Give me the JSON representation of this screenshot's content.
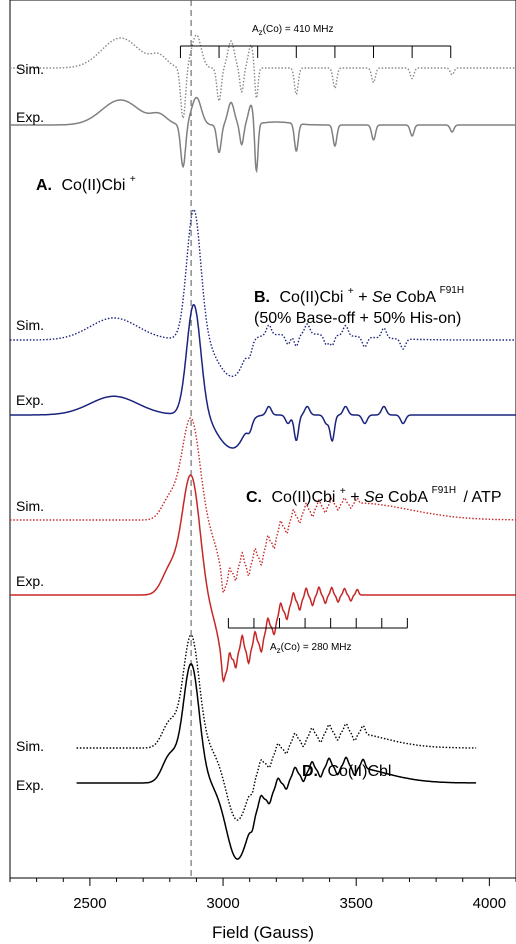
{
  "chart_data": {
    "type": "line",
    "xlabel": "Field (Gauss)",
    "xlim": [
      2200,
      4100
    ],
    "x_ticks": [
      "2500",
      "3000",
      "3500",
      "4000"
    ],
    "x_tick_values": [
      2500,
      3000,
      3500,
      4000
    ],
    "reference_line_gauss": 2880,
    "panels": [
      {
        "label": "A.",
        "title": "Co(II)Cbi",
        "title_sup": "+",
        "extra": "",
        "series": [
          {
            "name": "Sim.",
            "style": "dotted",
            "color": "#888888",
            "x_range": [
              2200,
              4100
            ]
          },
          {
            "name": "Exp.",
            "style": "solid",
            "color": "#808080",
            "x_range": [
              2200,
              4100
            ]
          }
        ]
      },
      {
        "label": "B.",
        "title": "Co(II)Cbi",
        "title_sup": "+",
        "title_join": " + ",
        "title_italic": "Se",
        "title_rest": "CobA",
        "title_rest_sup": "F91H",
        "extra": "(50% Base-off + 50% His-on)",
        "series": [
          {
            "name": "Sim.",
            "style": "dotted",
            "color": "#1a237e",
            "x_range": [
              2200,
              4100
            ]
          },
          {
            "name": "Exp.",
            "style": "solid",
            "color": "#1a237e",
            "x_range": [
              2200,
              4100
            ]
          }
        ]
      },
      {
        "label": "C.",
        "title": "Co(II)Cbi",
        "title_sup": "+",
        "title_join": " + ",
        "title_italic": "Se",
        "title_rest": "CobA",
        "title_rest_sup": "F91H",
        "title_tail": "/ ATP",
        "extra": "",
        "series": [
          {
            "name": "Sim.",
            "style": "dotted",
            "color": "#c62828",
            "x_range": [
              2200,
              4100
            ]
          },
          {
            "name": "Exp.",
            "style": "solid",
            "color": "#c62828",
            "x_range": [
              2200,
              4100
            ]
          }
        ]
      },
      {
        "label": "D.",
        "title": "Co(II)Cbl",
        "extra": "",
        "series": [
          {
            "name": "Sim.",
            "style": "dotted",
            "color": "#000000",
            "x_range": [
              2450,
              3950
            ]
          },
          {
            "name": "Exp.",
            "style": "solid",
            "color": "#000000",
            "x_range": [
              2450,
              3950
            ]
          }
        ]
      }
    ],
    "hyperfine_ladders": [
      {
        "label_main": "A",
        "label_sub": "z",
        "label_rest": "(Co) = 410 MHz",
        "start_gauss": 2840,
        "step_gauss": 145,
        "ticks": 8
      },
      {
        "label_main": "A",
        "label_sub": "z",
        "label_rest": "(Co) = 280 MHz",
        "start_gauss": 3020,
        "step_gauss": 96,
        "ticks": 8
      }
    ]
  }
}
